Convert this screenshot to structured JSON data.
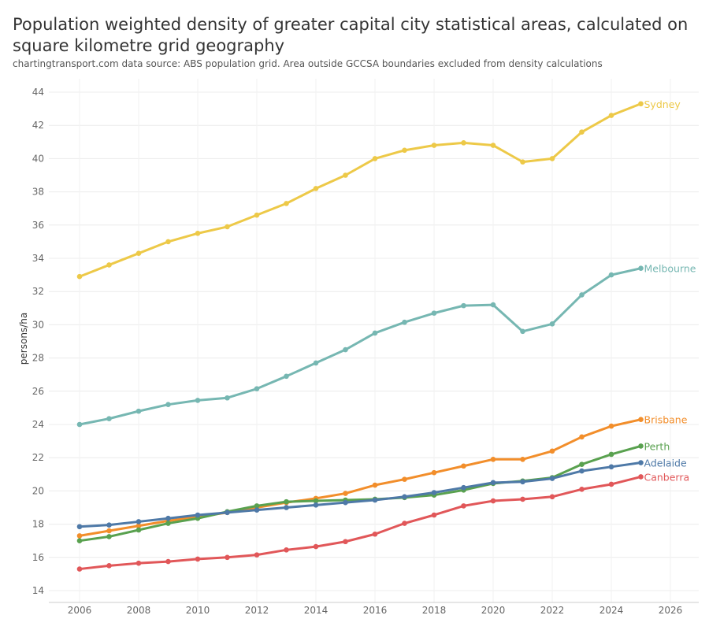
{
  "chart_data": {
    "type": "line",
    "title": "Population weighted density of greater capital city statistical areas, calculated on square kilometre grid geography",
    "subtitle": "chartingtransport.com  data source: ABS population grid. Area outside GCCSA boundaries excluded from density calculations",
    "xlabel": "",
    "ylabel": "persons/ha",
    "xlim": [
      2005,
      2027
    ],
    "ylim": [
      13.6,
      45
    ],
    "xticks": [
      2006,
      2008,
      2010,
      2012,
      2014,
      2016,
      2018,
      2020,
      2022,
      2024,
      2026
    ],
    "yticks": [
      14,
      16,
      18,
      20,
      22,
      24,
      26,
      28,
      30,
      32,
      34,
      36,
      38,
      40,
      42,
      44
    ],
    "grid": true,
    "legend": "end-of-line labels",
    "x": [
      2006,
      2007,
      2008,
      2009,
      2010,
      2011,
      2012,
      2013,
      2014,
      2015,
      2016,
      2017,
      2018,
      2019,
      2020,
      2021,
      2022,
      2023,
      2024,
      2025
    ],
    "series": [
      {
        "name": "Sydney",
        "color": "#EDC948",
        "values": [
          32.9,
          33.6,
          34.3,
          35.0,
          35.5,
          35.9,
          36.6,
          37.3,
          38.2,
          39.0,
          40.0,
          40.5,
          40.8,
          40.95,
          40.8,
          39.8,
          40.0,
          41.6,
          42.6,
          43.3
        ]
      },
      {
        "name": "Melbourne",
        "color": "#76B7B2",
        "values": [
          24.0,
          24.35,
          24.8,
          25.2,
          25.45,
          25.6,
          26.15,
          26.9,
          27.7,
          28.5,
          29.5,
          30.15,
          30.7,
          31.15,
          31.2,
          29.6,
          30.05,
          31.8,
          33.0,
          33.4
        ]
      },
      {
        "name": "Brisbane",
        "color": "#F28E2B",
        "values": [
          17.3,
          17.6,
          17.9,
          18.2,
          18.45,
          18.7,
          19.0,
          19.3,
          19.55,
          19.85,
          20.35,
          20.7,
          21.1,
          21.5,
          21.9,
          21.9,
          22.4,
          23.25,
          23.9,
          24.3
        ]
      },
      {
        "name": "Perth",
        "color": "#59A14F",
        "values": [
          17.0,
          17.25,
          17.65,
          18.05,
          18.35,
          18.75,
          19.1,
          19.35,
          19.4,
          19.45,
          19.5,
          19.6,
          19.75,
          20.05,
          20.45,
          20.6,
          20.8,
          21.6,
          22.2,
          22.7
        ]
      },
      {
        "name": "Adelaide",
        "color": "#4E79A7",
        "values": [
          17.85,
          17.95,
          18.15,
          18.35,
          18.55,
          18.7,
          18.85,
          19.0,
          19.15,
          19.3,
          19.45,
          19.65,
          19.9,
          20.2,
          20.5,
          20.55,
          20.75,
          21.2,
          21.45,
          21.7
        ]
      },
      {
        "name": "Canberra",
        "color": "#E15759",
        "values": [
          15.3,
          15.5,
          15.65,
          15.75,
          15.9,
          16.0,
          16.15,
          16.45,
          16.65,
          16.95,
          17.4,
          18.05,
          18.55,
          19.1,
          19.4,
          19.5,
          19.65,
          20.1,
          20.4,
          20.85
        ]
      }
    ]
  }
}
